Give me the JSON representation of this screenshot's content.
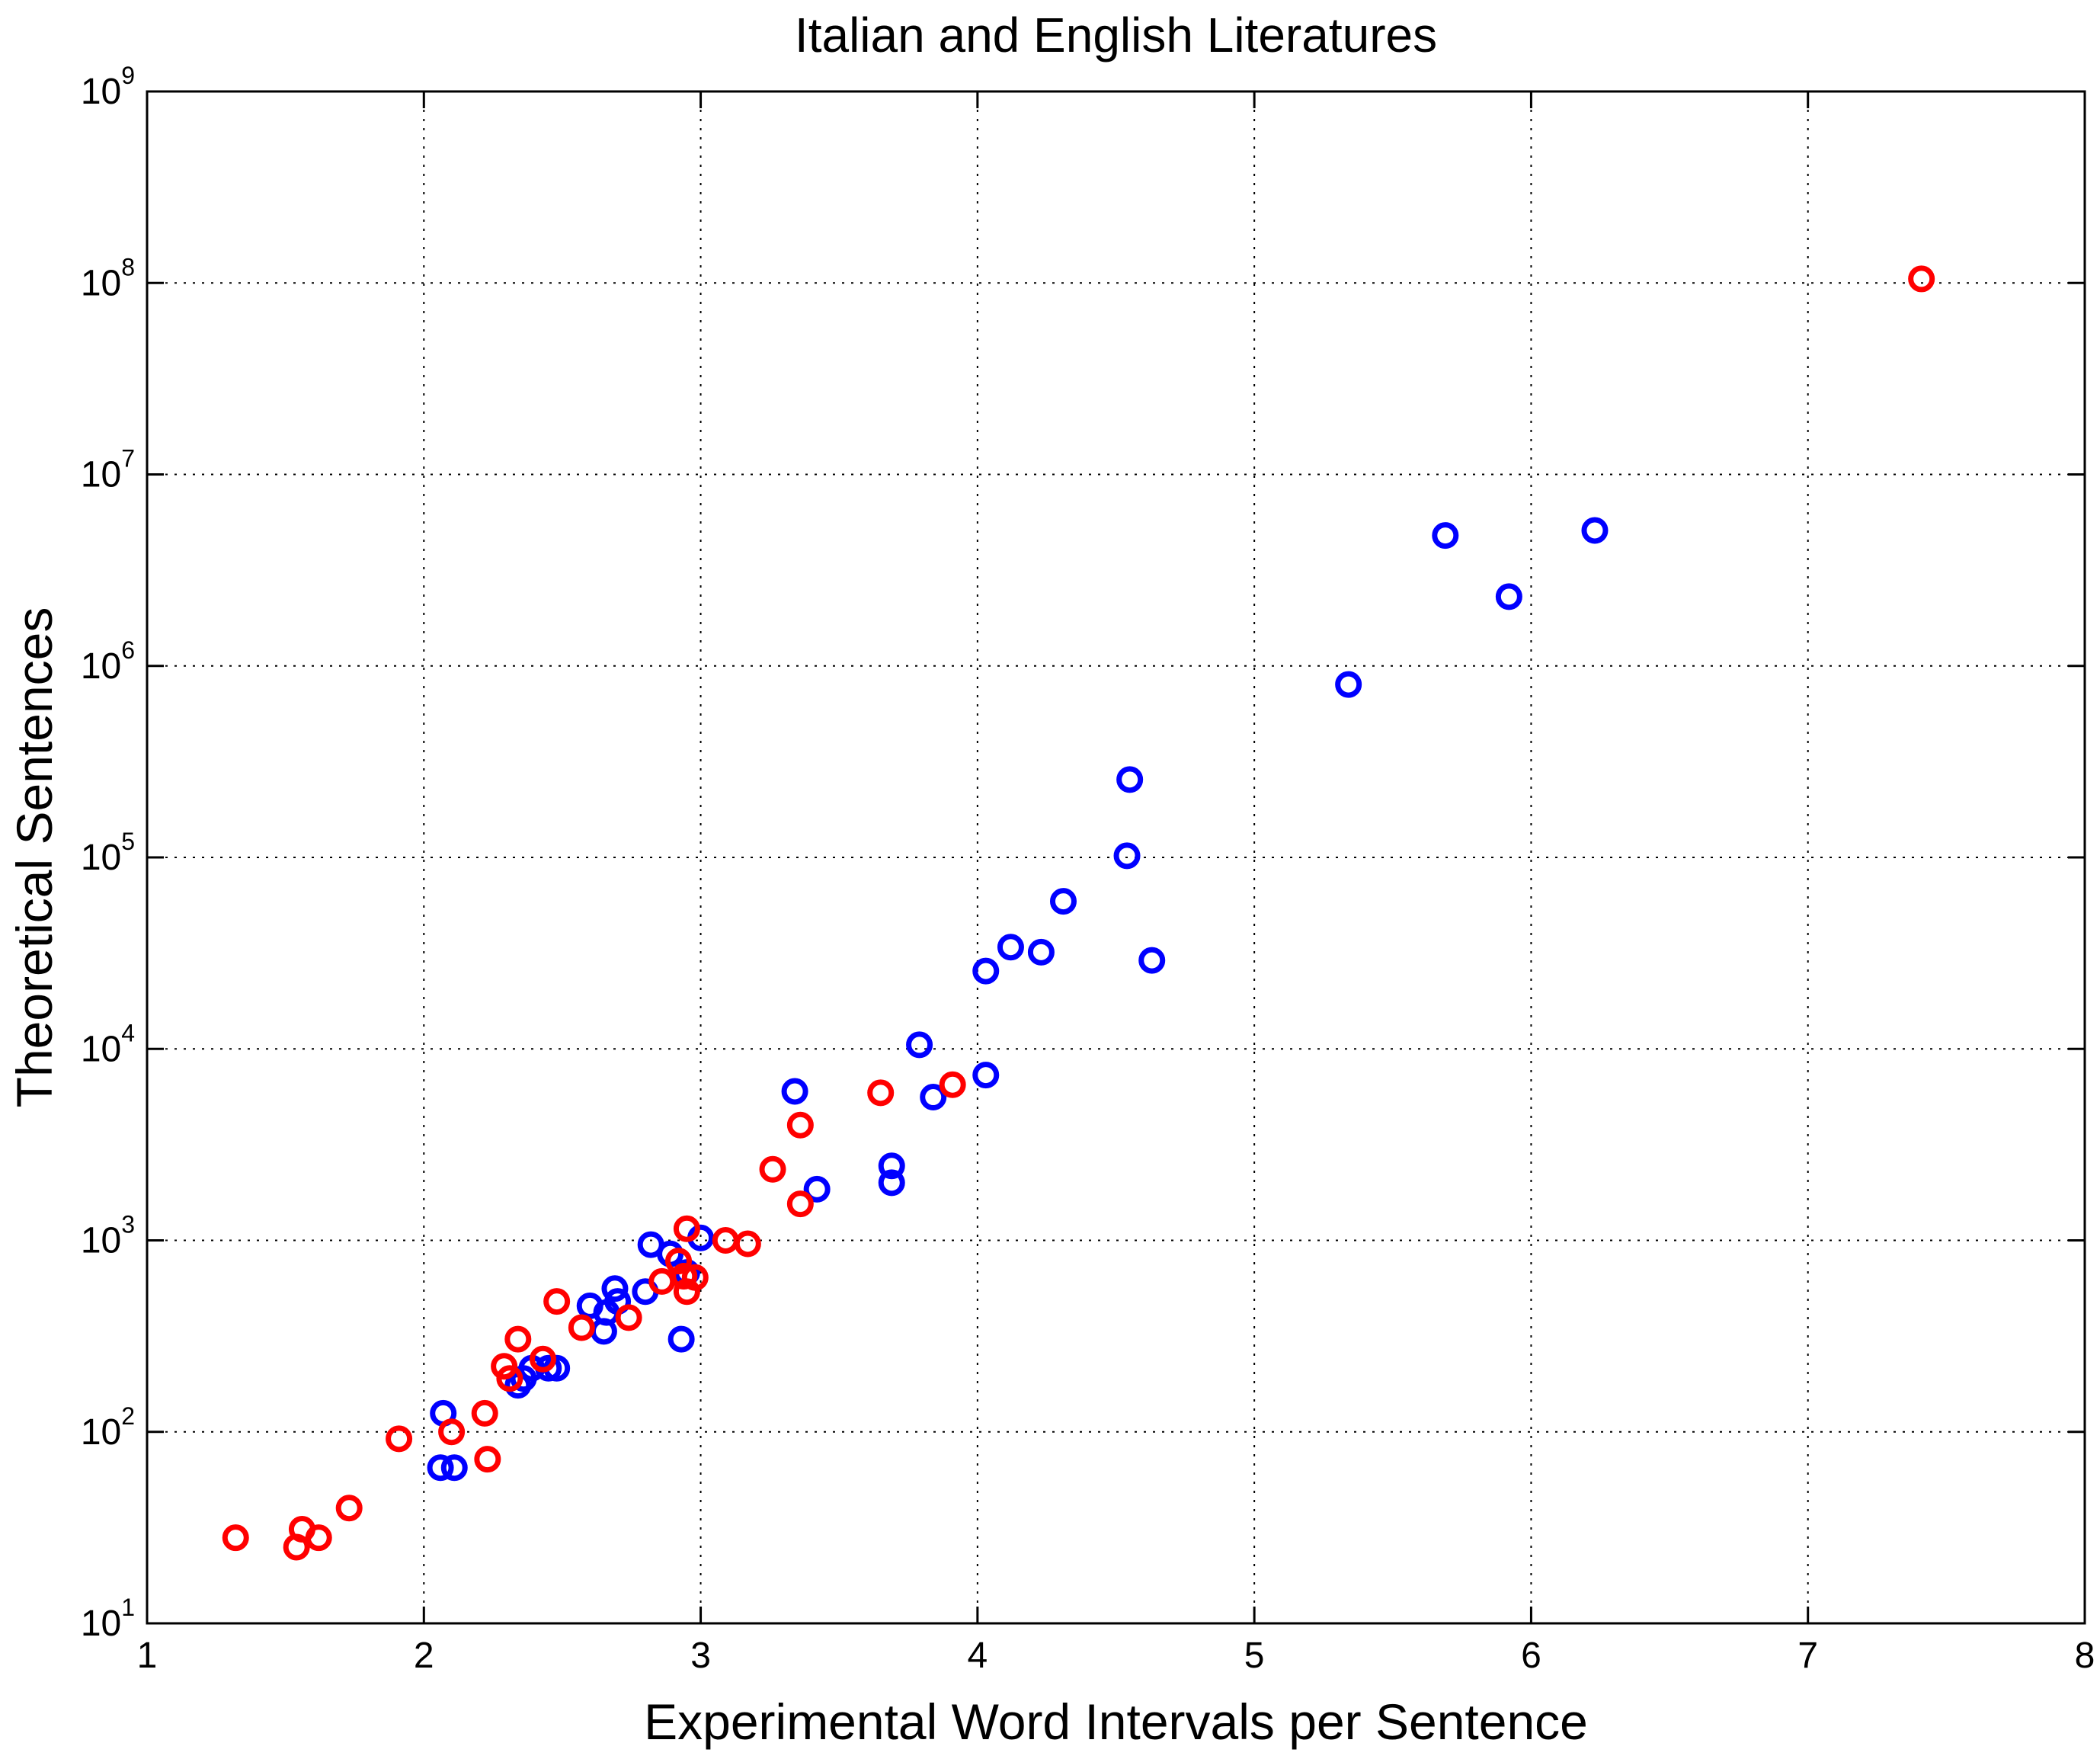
{
  "chart_data": {
    "type": "scatter",
    "title": "Italian and English Literatures",
    "xlabel": "Experimental Word Intervals per Sentence",
    "ylabel": "Theoretical Sentences",
    "xlim": [
      1,
      8
    ],
    "ylim": [
      10,
      1000000000
    ],
    "yscale": "log",
    "grid": true,
    "x_ticks": [
      "1",
      "2",
      "3",
      "4",
      "5",
      "6",
      "7",
      "8"
    ],
    "y_ticks": [
      {
        "base": "10",
        "exp": "1"
      },
      {
        "base": "10",
        "exp": "2"
      },
      {
        "base": "10",
        "exp": "3"
      },
      {
        "base": "10",
        "exp": "4"
      },
      {
        "base": "10",
        "exp": "5"
      },
      {
        "base": "10",
        "exp": "6"
      },
      {
        "base": "10",
        "exp": "7"
      },
      {
        "base": "10",
        "exp": "8"
      },
      {
        "base": "10",
        "exp": "9"
      }
    ],
    "series": [
      {
        "color": "#0000ff",
        "marker": "circle-open",
        "points": [
          [
            2.07,
            125
          ],
          [
            2.06,
            65
          ],
          [
            2.11,
            65
          ],
          [
            2.34,
            175
          ],
          [
            2.36,
            190
          ],
          [
            2.39,
            215
          ],
          [
            2.45,
            215
          ],
          [
            2.48,
            215
          ],
          [
            2.6,
            455
          ],
          [
            2.65,
            335
          ],
          [
            2.66,
            420
          ],
          [
            2.69,
            560
          ],
          [
            2.7,
            480
          ],
          [
            2.8,
            540
          ],
          [
            2.82,
            950
          ],
          [
            2.89,
            850
          ],
          [
            2.93,
            305
          ],
          [
            2.95,
            680
          ],
          [
            3.0,
            1030
          ],
          [
            3.34,
            6000
          ],
          [
            3.42,
            1850
          ],
          [
            3.69,
            2450
          ],
          [
            3.69,
            2000
          ],
          [
            3.79,
            10500
          ],
          [
            3.84,
            5600
          ],
          [
            4.03,
            7300
          ],
          [
            4.03,
            25500
          ],
          [
            4.12,
            34000
          ],
          [
            4.23,
            32000
          ],
          [
            4.31,
            59000
          ],
          [
            4.54,
            102000
          ],
          [
            4.55,
            255000
          ],
          [
            4.63,
            29000
          ],
          [
            5.34,
            800000
          ],
          [
            5.69,
            4800000
          ],
          [
            5.92,
            2300000
          ],
          [
            6.23,
            5100000
          ]
        ]
      },
      {
        "color": "#ff0000",
        "marker": "circle-open",
        "points": [
          [
            1.32,
            28
          ],
          [
            1.54,
            25
          ],
          [
            1.56,
            31
          ],
          [
            1.62,
            28
          ],
          [
            1.73,
            40
          ],
          [
            1.91,
            92
          ],
          [
            2.1,
            100
          ],
          [
            2.22,
            125
          ],
          [
            2.23,
            72
          ],
          [
            2.29,
            220
          ],
          [
            2.31,
            190
          ],
          [
            2.34,
            305
          ],
          [
            2.43,
            240
          ],
          [
            2.48,
            480
          ],
          [
            2.57,
            350
          ],
          [
            2.74,
            395
          ],
          [
            2.86,
            610
          ],
          [
            2.92,
            780
          ],
          [
            2.94,
            650
          ],
          [
            2.95,
            540
          ],
          [
            2.95,
            1150
          ],
          [
            2.98,
            640
          ],
          [
            3.09,
            1000
          ],
          [
            3.17,
            960
          ],
          [
            3.26,
            2350
          ],
          [
            3.36,
            1550
          ],
          [
            3.36,
            4000
          ],
          [
            3.65,
            5900
          ],
          [
            3.91,
            6500
          ],
          [
            7.41,
            105000000
          ]
        ]
      }
    ]
  }
}
